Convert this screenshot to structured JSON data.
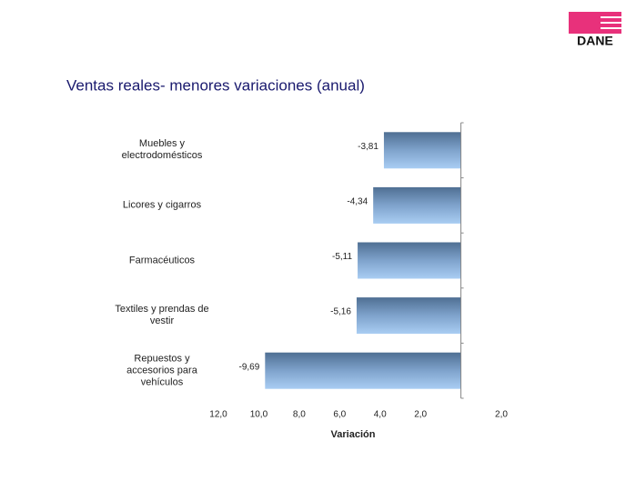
{
  "logo": "DANE",
  "chart_data": {
    "type": "hbar",
    "title": "Ventas reales- menores variaciones (anual)",
    "x_label": "Variación",
    "categories": [
      "Muebles y electrodomésticos",
      "Licores y cigarros",
      "Farmacéuticos",
      "Textiles y prendas de vestir",
      "Repuestos y accesorios para vehículos"
    ],
    "values": [
      -3.81,
      -4.34,
      -5.11,
      -5.16,
      -9.69
    ],
    "value_labels": [
      "-3,81",
      "-4,34",
      "-5,11",
      "-5,16",
      "-9,69"
    ],
    "color": "#8fb4dc",
    "xlim": [
      -12,
      2
    ],
    "xticks": [
      {
        "value": -12,
        "label": "12,0"
      },
      {
        "value": -10,
        "label": "10,0"
      },
      {
        "value": -8,
        "label": "8,0"
      },
      {
        "value": -6,
        "label": "6,0"
      },
      {
        "value": -4,
        "label": "4,0"
      },
      {
        "value": -2,
        "label": "2,0"
      },
      {
        "value": 2,
        "label": "2,0"
      }
    ]
  }
}
